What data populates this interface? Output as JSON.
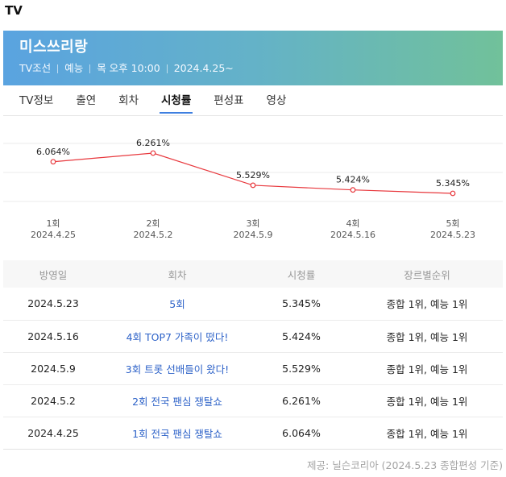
{
  "section_title": "TV",
  "show": {
    "title": "미스쓰리랑",
    "channel": "TV조선",
    "genre": "예능",
    "schedule": "목 오후 10:00",
    "start_date": "2024.4.25~"
  },
  "tabs": [
    {
      "label": "TV정보",
      "active": false
    },
    {
      "label": "출연",
      "active": false
    },
    {
      "label": "회차",
      "active": false
    },
    {
      "label": "시청률",
      "active": true
    },
    {
      "label": "편성표",
      "active": false
    },
    {
      "label": "영상",
      "active": false
    }
  ],
  "chart_data": {
    "type": "line",
    "x": [
      "1회",
      "2회",
      "3회",
      "4회",
      "5회"
    ],
    "dates": [
      "2024.4.25",
      "2024.5.2",
      "2024.5.9",
      "2024.5.16",
      "2024.5.23"
    ],
    "values": [
      6.064,
      6.261,
      5.529,
      5.424,
      5.345
    ],
    "value_labels": [
      "6.064%",
      "6.261%",
      "5.529%",
      "5.424%",
      "5.345%"
    ],
    "line_color": "#e8383d",
    "grid": true
  },
  "table": {
    "headers": [
      "방영일",
      "회차",
      "시청률",
      "장르별순위"
    ],
    "rows": [
      {
        "date": "2024.5.23",
        "episode": "5회",
        "rating": "5.345%",
        "rank": "종합 1위, 예능 1위"
      },
      {
        "date": "2024.5.16",
        "episode": "4회 TOP7 가족이 떴다!",
        "rating": "5.424%",
        "rank": "종합 1위, 예능 1위"
      },
      {
        "date": "2024.5.9",
        "episode": "3회 트롯 선배들이 왔다!",
        "rating": "5.529%",
        "rank": "종합 1위, 예능 1위"
      },
      {
        "date": "2024.5.2",
        "episode": "2회 전국 팬심 쟁탈쇼",
        "rating": "6.261%",
        "rank": "종합 1위, 예능 1위"
      },
      {
        "date": "2024.4.25",
        "episode": "1회 전국 팬심 쟁탈쇼",
        "rating": "6.064%",
        "rank": "종합 1위, 예능 1위"
      }
    ]
  },
  "source_note": "제공: 닐슨코리아 (2024.5.23 종합편성 기준)",
  "colors": {
    "banner_start": "#5aa3e0",
    "banner_end": "#71c19a",
    "link": "#2d62c8",
    "tab_underline": "#3e7fe0"
  }
}
